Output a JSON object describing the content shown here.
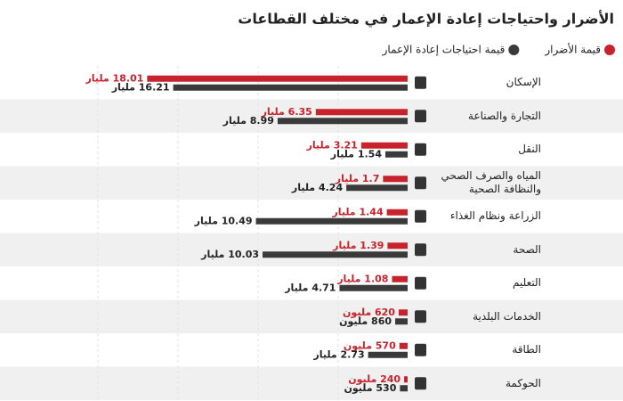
{
  "chart_data": {
    "type": "bar",
    "orientation": "horizontal",
    "title": "الأضرار واحتياجات إعادة الإعمار في مختلف القطاعات",
    "categories": [
      "الإسكان",
      "التجارة والصناعة",
      "النقل",
      "المياه والصرف الصحي والنظافة الصحية",
      "الزراعة ونظام الغذاء",
      "الصحة",
      "التعليم",
      "الخدمات البلدية",
      "الطاقة",
      "الحوكمة"
    ],
    "series": [
      {
        "name": "قيمة الأضرار",
        "color": "#c8232c",
        "values": [
          18.01,
          6.35,
          3.21,
          1.7,
          1.44,
          1.39,
          1.08,
          0.62,
          0.57,
          0.24
        ],
        "value_labels": [
          "18.01 مليار",
          "6.35 مليار",
          "3.21 مليار",
          "1.7 مليار",
          "1.44 مليار",
          "1.39 مليار",
          "1.08 مليار",
          "620 مليون",
          "570 مليون",
          "240 مليون"
        ]
      },
      {
        "name": "قيمة احتياجات إعادة الإعمار",
        "color": "#3a3a3a",
        "values": [
          16.21,
          8.99,
          1.54,
          4.24,
          10.49,
          10.03,
          4.71,
          0.86,
          2.73,
          0.53
        ],
        "value_labels": [
          "16.21 مليار",
          "8.99 مليار",
          "1.54 مليار",
          "4.24 مليار",
          "10.49 مليار",
          "10.03 مليار",
          "4.71 مليار",
          "860 مليون",
          "2.73 مليار",
          "530 مليون"
        ]
      }
    ]
  }
}
